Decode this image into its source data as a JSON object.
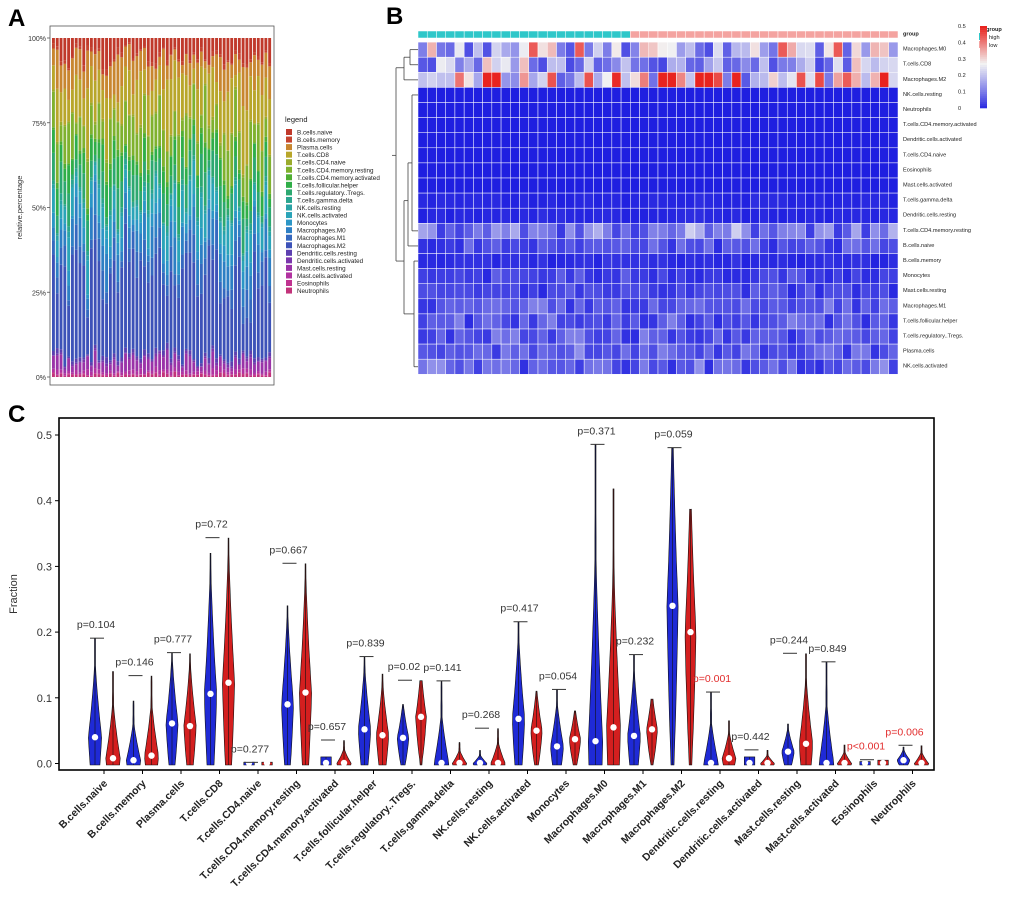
{
  "panels": {
    "a": "A",
    "b": "B",
    "c": "C"
  },
  "chart_data": [
    {
      "type": "stacked-bar",
      "panel": "A",
      "ylabel": "relative.percentage",
      "yticks": [
        "0%",
        "25%",
        "50%",
        "75%",
        "100%"
      ],
      "n_samples": 58,
      "legend_title": "legend",
      "legend_position": "right",
      "series": [
        {
          "name": "B.cells.naive",
          "color": "#c0392b",
          "mean": 0.05
        },
        {
          "name": "B.cells.memory",
          "color": "#c5442f",
          "mean": 0.01
        },
        {
          "name": "Plasma.cells",
          "color": "#c8862f",
          "mean": 0.07
        },
        {
          "name": "T.cells.CD8",
          "color": "#b8a62a",
          "mean": 0.12
        },
        {
          "name": "T.cells.CD4.naive",
          "color": "#9aab2c",
          "mean": 0.005
        },
        {
          "name": "T.cells.CD4.memory.resting",
          "color": "#7fb12e",
          "mean": 0.1
        },
        {
          "name": "T.cells.CD4.memory.activated",
          "color": "#4fae33",
          "mean": 0.01
        },
        {
          "name": "T.cells.follicular.helper",
          "color": "#2fae48",
          "mean": 0.05
        },
        {
          "name": "T.cells.regulatory..Tregs.",
          "color": "#2ca870",
          "mean": 0.06
        },
        {
          "name": "T.cells.gamma.delta",
          "color": "#2aa58f",
          "mean": 0.01
        },
        {
          "name": "NK.cells.resting",
          "color": "#29a3a5",
          "mean": 0.01
        },
        {
          "name": "NK.cells.activated",
          "color": "#2aa4b8",
          "mean": 0.06
        },
        {
          "name": "Monocytes",
          "color": "#2b96c6",
          "mean": 0.03
        },
        {
          "name": "Macrophages.M0",
          "color": "#2d7fc4",
          "mean": 0.06
        },
        {
          "name": "Macrophages.M1",
          "color": "#3568bf",
          "mean": 0.05
        },
        {
          "name": "Macrophages.M2",
          "color": "#3d52b8",
          "mean": 0.22
        },
        {
          "name": "Dendritic.cells.resting",
          "color": "#5c3fb0",
          "mean": 0.01
        },
        {
          "name": "Dendritic.cells.activated",
          "color": "#7a36ac",
          "mean": 0.005
        },
        {
          "name": "Mast.cells.resting",
          "color": "#9a33a8",
          "mean": 0.03
        },
        {
          "name": "Mast.cells.activated",
          "color": "#b232a0",
          "mean": 0.01
        },
        {
          "name": "Eosinophils",
          "color": "#c03290",
          "mean": 0.002
        },
        {
          "name": "Neutrophils",
          "color": "#c2337a",
          "mean": 0.008
        }
      ]
    },
    {
      "type": "heatmap",
      "panel": "B",
      "n_high": 23,
      "n_low": 29,
      "group_legend": {
        "title": "group",
        "items": [
          {
            "label": "high",
            "color": "#2ec7c9"
          },
          {
            "label": "low",
            "color": "#f4a3a0"
          }
        ]
      },
      "color_scale": {
        "min": 0,
        "max": 0.5,
        "ticks": [
          "0",
          "0.1",
          "0.2",
          "0.3",
          "0.4",
          "0.5"
        ],
        "low_color": "#1f1fe0",
        "mid_color": "#f2f2f2",
        "high_color": "#e8231f"
      },
      "rows": [
        {
          "name": "group",
          "level": 0
        },
        {
          "name": "Macrophages.M0",
          "level": 0.2
        },
        {
          "name": "T.cells.CD8",
          "level": 0.15
        },
        {
          "name": "Macrophages.M2",
          "level": 0.3
        },
        {
          "name": "NK.cells.resting",
          "level": 0
        },
        {
          "name": "Neutrophils",
          "level": 0
        },
        {
          "name": "T.cells.CD4.memory.activated",
          "level": 0
        },
        {
          "name": "Dendritic.cells.activated",
          "level": 0
        },
        {
          "name": "T.cells.CD4.naive",
          "level": 0
        },
        {
          "name": "Eosinophils",
          "level": 0
        },
        {
          "name": "Mast.cells.activated",
          "level": 0
        },
        {
          "name": "T.cells.gamma.delta",
          "level": 0.005
        },
        {
          "name": "Dendritic.cells.resting",
          "level": 0.005
        },
        {
          "name": "T.cells.CD4.memory.resting",
          "level": 0.1
        },
        {
          "name": "B.cells.naive",
          "level": 0.04
        },
        {
          "name": "B.cells.memory",
          "level": 0.01
        },
        {
          "name": "Monocytes",
          "level": 0.03
        },
        {
          "name": "Mast.cells.resting",
          "level": 0.03
        },
        {
          "name": "Macrophages.M1",
          "level": 0.05
        },
        {
          "name": "T.cells.follicular.helper",
          "level": 0.05
        },
        {
          "name": "T.cells.regulatory..Tregs.",
          "level": 0.05
        },
        {
          "name": "Plasma.cells",
          "level": 0.06
        },
        {
          "name": "NK.cells.activated",
          "level": 0.06
        }
      ]
    },
    {
      "type": "violin",
      "panel": "C",
      "ylabel": "Fraction",
      "ylim": [
        0,
        0.52
      ],
      "yticks": [
        "0.0",
        "0.1",
        "0.2",
        "0.3",
        "0.4",
        "0.5"
      ],
      "ytick_values": [
        0,
        0.1,
        0.2,
        0.3,
        0.4,
        0.5
      ],
      "group_colors": {
        "high": "#1f2ad6",
        "low": "#d41f1f"
      },
      "significant_color": "#e22d2d",
      "categories": [
        {
          "name": "B.cells.naive",
          "p": "p=0.104",
          "sig": false,
          "high": {
            "max": 0.19,
            "median": 0.04
          },
          "low": {
            "max": 0.14,
            "median": 0.008
          }
        },
        {
          "name": "B.cells.memory",
          "p": "p=0.146",
          "sig": false,
          "high": {
            "max": 0.095,
            "median": 0.005
          },
          "low": {
            "max": 0.133,
            "median": 0.012
          }
        },
        {
          "name": "Plasma.cells",
          "p": "p=0.777",
          "sig": false,
          "high": {
            "max": 0.168,
            "median": 0.061
          },
          "low": {
            "max": 0.167,
            "median": 0.057
          }
        },
        {
          "name": "T.cells.CD8",
          "p": "p=0.72",
          "sig": false,
          "high": {
            "max": 0.32,
            "median": 0.106
          },
          "low": {
            "max": 0.343,
            "median": 0.123
          }
        },
        {
          "name": "T.cells.CD4.naive",
          "p": "p=0.277",
          "sig": false,
          "high": {
            "max": 0.001,
            "median": 0.0
          },
          "low": {
            "max": 0.001,
            "median": 0.0
          }
        },
        {
          "name": "T.cells.CD4.memory.resting",
          "p": "p=0.667",
          "sig": false,
          "high": {
            "max": 0.24,
            "median": 0.09
          },
          "low": {
            "max": 0.304,
            "median": 0.108
          }
        },
        {
          "name": "T.cells.CD4.memory.activated",
          "p": "p=0.657",
          "sig": false,
          "high": {
            "max": 0.01,
            "median": 0.0
          },
          "low": {
            "max": 0.035,
            "median": 0.0
          }
        },
        {
          "name": "T.cells.follicular.helper",
          "p": "p=0.839",
          "sig": false,
          "high": {
            "max": 0.162,
            "median": 0.052
          },
          "low": {
            "max": 0.136,
            "median": 0.043
          }
        },
        {
          "name": "T.cells.regulatory..Tregs.",
          "p": "p=0.02",
          "sig": false,
          "high": {
            "max": 0.09,
            "median": 0.039
          },
          "low": {
            "max": 0.126,
            "median": 0.071
          }
        },
        {
          "name": "T.cells.gamma.delta",
          "p": "p=0.141",
          "sig": false,
          "high": {
            "max": 0.125,
            "median": 0.0
          },
          "low": {
            "max": 0.032,
            "median": 0.0
          }
        },
        {
          "name": "NK.cells.resting",
          "p": "p=0.268",
          "sig": false,
          "high": {
            "max": 0.02,
            "median": 0.0
          },
          "low": {
            "max": 0.053,
            "median": 0.0
          }
        },
        {
          "name": "NK.cells.activated",
          "p": "p=0.417",
          "sig": false,
          "high": {
            "max": 0.215,
            "median": 0.068
          },
          "low": {
            "max": 0.11,
            "median": 0.05
          }
        },
        {
          "name": "Monocytes",
          "p": "p=0.054",
          "sig": false,
          "high": {
            "max": 0.112,
            "median": 0.026
          },
          "low": {
            "max": 0.08,
            "median": 0.037
          }
        },
        {
          "name": "Macrophages.M0",
          "p": "p=0.371",
          "sig": false,
          "high": {
            "max": 0.485,
            "median": 0.034
          },
          "low": {
            "max": 0.418,
            "median": 0.055
          }
        },
        {
          "name": "Macrophages.M1",
          "p": "p=0.232",
          "sig": false,
          "high": {
            "max": 0.165,
            "median": 0.042
          },
          "low": {
            "max": 0.098,
            "median": 0.052
          }
        },
        {
          "name": "Macrophages.M2",
          "p": "p=0.059",
          "sig": false,
          "high": {
            "max": 0.48,
            "median": 0.24
          },
          "low": {
            "max": 0.387,
            "median": 0.2
          }
        },
        {
          "name": "Dendritic.cells.resting",
          "p": "p=0.001",
          "sig": true,
          "high": {
            "max": 0.108,
            "median": 0.0
          },
          "low": {
            "max": 0.065,
            "median": 0.008
          }
        },
        {
          "name": "Dendritic.cells.activated",
          "p": "p=0.442",
          "sig": false,
          "high": {
            "max": 0.01,
            "median": 0.0
          },
          "low": {
            "max": 0.02,
            "median": 0.0
          }
        },
        {
          "name": "Mast.cells.resting",
          "p": "p=0.244",
          "sig": false,
          "high": {
            "max": 0.06,
            "median": 0.018
          },
          "low": {
            "max": 0.167,
            "median": 0.03
          }
        },
        {
          "name": "Mast.cells.activated",
          "p": "p=0.849",
          "sig": false,
          "high": {
            "max": 0.154,
            "median": 0.0
          },
          "low": {
            "max": 0.028,
            "median": 0.0
          }
        },
        {
          "name": "Eosinophils",
          "p": "p<0.001",
          "sig": true,
          "high": {
            "max": 0.003,
            "median": 0.0
          },
          "low": {
            "max": 0.005,
            "median": 0.0
          }
        },
        {
          "name": "Neutrophils",
          "p": "p=0.006",
          "sig": true,
          "high": {
            "max": 0.025,
            "median": 0.005
          },
          "low": {
            "max": 0.027,
            "median": 0.0
          }
        }
      ]
    }
  ]
}
